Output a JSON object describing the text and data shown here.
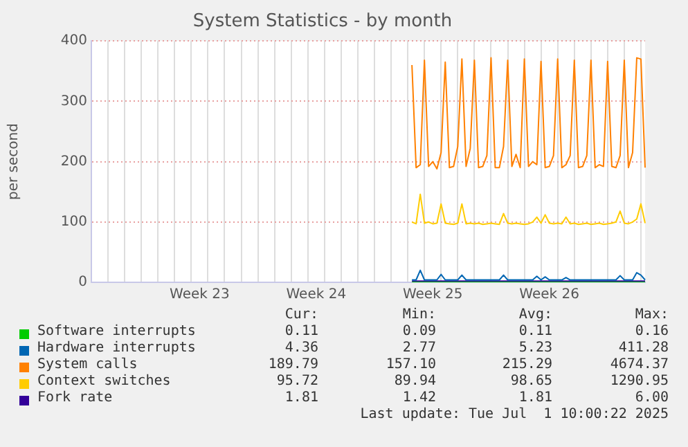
{
  "chart_data": {
    "type": "line",
    "title": "System Statistics - by month",
    "ylabel": "per second",
    "categories": [
      null,
      null,
      null,
      null,
      null,
      null,
      null,
      null,
      null,
      null,
      null,
      null,
      null,
      null,
      null,
      null,
      null,
      null,
      null,
      null,
      null,
      null,
      null,
      null,
      null,
      null,
      "Week 23",
      null,
      null,
      null,
      null,
      null,
      null,
      null,
      null,
      null,
      null,
      null,
      null,
      null,
      null,
      null,
      null,
      null,
      null,
      null,
      null,
      null,
      null,
      null,
      null,
      null,
      null,
      null,
      "Week 24",
      null,
      null,
      null,
      null,
      null,
      null,
      null,
      null,
      null,
      null,
      null,
      null,
      null,
      null,
      null,
      null,
      null,
      null,
      null,
      null,
      null,
      null,
      null,
      null,
      null,
      null,
      null,
      "Week 25",
      null,
      null,
      null,
      null,
      null,
      null,
      null,
      null,
      null,
      null,
      null,
      null,
      null,
      null,
      null,
      null,
      null,
      null,
      null,
      null,
      null,
      null,
      null,
      null,
      null,
      null,
      null,
      "Week 26",
      null,
      null,
      null,
      null,
      null,
      null,
      null,
      null,
      null,
      null,
      null,
      null,
      null,
      null,
      null,
      null,
      null,
      null,
      null,
      null,
      null,
      null,
      null
    ],
    "ylim": [
      0,
      400
    ],
    "yticks": [
      0,
      100,
      200,
      300,
      400
    ],
    "grid": true,
    "legend": "bottom",
    "series": [
      {
        "name": "Software interrupts",
        "color": "#00cc00",
        "values": [
          null,
          null,
          null,
          null,
          null,
          null,
          null,
          null,
          null,
          null,
          null,
          null,
          null,
          null,
          null,
          null,
          null,
          null,
          null,
          null,
          null,
          null,
          null,
          null,
          null,
          null,
          null,
          null,
          null,
          null,
          null,
          null,
          null,
          null,
          null,
          null,
          null,
          null,
          null,
          null,
          null,
          null,
          null,
          null,
          null,
          null,
          null,
          null,
          null,
          null,
          null,
          null,
          null,
          null,
          null,
          null,
          null,
          null,
          null,
          null,
          null,
          null,
          null,
          null,
          null,
          null,
          null,
          null,
          null,
          null,
          null,
          null,
          null,
          null,
          null,
          null,
          null,
          0,
          0,
          0,
          0,
          0,
          0,
          0,
          0,
          0,
          0,
          0,
          0,
          0,
          0,
          0,
          0,
          0,
          0,
          0,
          0,
          0,
          0,
          0,
          0,
          0,
          0,
          0,
          0,
          0,
          0,
          0,
          0,
          0,
          0,
          0,
          0,
          0,
          0,
          0,
          0,
          0,
          0,
          0,
          0,
          0,
          0,
          0,
          0,
          0,
          0,
          0,
          0,
          0,
          0,
          0,
          0,
          0
        ]
      },
      {
        "name": "Hardware interrupts",
        "color": "#0066b3",
        "values": [
          null,
          null,
          null,
          null,
          null,
          null,
          null,
          null,
          null,
          null,
          null,
          null,
          null,
          null,
          null,
          null,
          null,
          null,
          null,
          null,
          null,
          null,
          null,
          null,
          null,
          null,
          null,
          null,
          null,
          null,
          null,
          null,
          null,
          null,
          null,
          null,
          null,
          null,
          null,
          null,
          null,
          null,
          null,
          null,
          null,
          null,
          null,
          null,
          null,
          null,
          null,
          null,
          null,
          null,
          null,
          null,
          null,
          null,
          null,
          null,
          null,
          null,
          null,
          null,
          null,
          null,
          null,
          null,
          null,
          null,
          null,
          null,
          null,
          null,
          null,
          null,
          null,
          4,
          4,
          20,
          4,
          4,
          4,
          4,
          13,
          4,
          4,
          4,
          4,
          12,
          4,
          4,
          4,
          4,
          4,
          4,
          4,
          4,
          4,
          12,
          4,
          4,
          4,
          4,
          4,
          4,
          4,
          10,
          4,
          9,
          4,
          4,
          4,
          4,
          8,
          4,
          4,
          4,
          4,
          4,
          4,
          4,
          4,
          4,
          4,
          4,
          4,
          11,
          4,
          4,
          4,
          16,
          12,
          4
        ]
      },
      {
        "name": "System calls",
        "color": "#ff8000",
        "values": [
          null,
          null,
          null,
          null,
          null,
          null,
          null,
          null,
          null,
          null,
          null,
          null,
          null,
          null,
          null,
          null,
          null,
          null,
          null,
          null,
          null,
          null,
          null,
          null,
          null,
          null,
          null,
          null,
          null,
          null,
          null,
          null,
          null,
          null,
          null,
          null,
          null,
          null,
          null,
          null,
          null,
          null,
          null,
          null,
          null,
          null,
          null,
          null,
          null,
          null,
          null,
          null,
          null,
          null,
          null,
          null,
          null,
          null,
          null,
          null,
          null,
          null,
          null,
          null,
          null,
          null,
          null,
          null,
          null,
          null,
          null,
          null,
          null,
          null,
          null,
          null,
          null,
          360,
          190,
          195,
          368,
          192,
          200,
          188,
          215,
          365,
          190,
          192,
          225,
          370,
          192,
          222,
          368,
          190,
          192,
          210,
          372,
          190,
          190,
          225,
          368,
          192,
          212,
          190,
          370,
          192,
          200,
          195,
          366,
          190,
          192,
          210,
          370,
          190,
          195,
          210,
          368,
          190,
          192,
          210,
          368,
          190,
          195,
          192,
          366,
          192,
          190,
          210,
          368,
          190,
          215,
          372,
          370,
          190
        ]
      },
      {
        "name": "Context switches",
        "color": "#ffcc00",
        "values": [
          null,
          null,
          null,
          null,
          null,
          null,
          null,
          null,
          null,
          null,
          null,
          null,
          null,
          null,
          null,
          null,
          null,
          null,
          null,
          null,
          null,
          null,
          null,
          null,
          null,
          null,
          null,
          null,
          null,
          null,
          null,
          null,
          null,
          null,
          null,
          null,
          null,
          null,
          null,
          null,
          null,
          null,
          null,
          null,
          null,
          null,
          null,
          null,
          null,
          null,
          null,
          null,
          null,
          null,
          null,
          null,
          null,
          null,
          null,
          null,
          null,
          null,
          null,
          null,
          null,
          null,
          null,
          null,
          null,
          null,
          null,
          null,
          null,
          null,
          null,
          null,
          null,
          100,
          97,
          146,
          98,
          100,
          97,
          98,
          130,
          98,
          97,
          96,
          98,
          130,
          97,
          98,
          97,
          98,
          96,
          97,
          98,
          97,
          96,
          114,
          98,
          97,
          98,
          97,
          96,
          97,
          100,
          108,
          98,
          112,
          98,
          97,
          98,
          97,
          108,
          97,
          98,
          96,
          97,
          98,
          96,
          97,
          98,
          96,
          97,
          98,
          100,
          118,
          98,
          97,
          100,
          105,
          130,
          98
        ]
      },
      {
        "name": "Fork rate",
        "color": "#330099",
        "values": [
          null,
          null,
          null,
          null,
          null,
          null,
          null,
          null,
          null,
          null,
          null,
          null,
          null,
          null,
          null,
          null,
          null,
          null,
          null,
          null,
          null,
          null,
          null,
          null,
          null,
          null,
          null,
          null,
          null,
          null,
          null,
          null,
          null,
          null,
          null,
          null,
          null,
          null,
          null,
          null,
          null,
          null,
          null,
          null,
          null,
          null,
          null,
          null,
          null,
          null,
          null,
          null,
          null,
          null,
          null,
          null,
          null,
          null,
          null,
          null,
          null,
          null,
          null,
          null,
          null,
          null,
          null,
          null,
          null,
          null,
          null,
          null,
          null,
          null,
          null,
          null,
          null,
          2,
          2,
          2,
          2,
          2,
          2,
          2,
          2,
          2,
          2,
          2,
          2,
          2,
          2,
          2,
          2,
          2,
          2,
          2,
          2,
          2,
          2,
          2,
          2,
          2,
          2,
          2,
          2,
          2,
          2,
          2,
          2,
          2,
          2,
          2,
          2,
          2,
          2,
          2,
          2,
          2,
          2,
          2,
          2,
          2,
          2,
          2,
          2,
          2,
          2,
          2,
          2,
          2,
          2,
          2,
          2,
          2
        ]
      }
    ],
    "annotations": [
      "Cur:",
      "Min:",
      "Avg:",
      "Max:",
      "0.11",
      "0.09",
      "0.11",
      "0.16",
      "4.36",
      "2.77",
      "5.23",
      "411.28",
      "189.79",
      "157.10",
      "215.29",
      "4674.37",
      "95.72",
      "89.94",
      "98.65",
      "1290.95",
      "1.81",
      "1.42",
      "1.81",
      "6.00",
      "Last update: Tue Jul  1 10:00:22 2025"
    ]
  }
}
